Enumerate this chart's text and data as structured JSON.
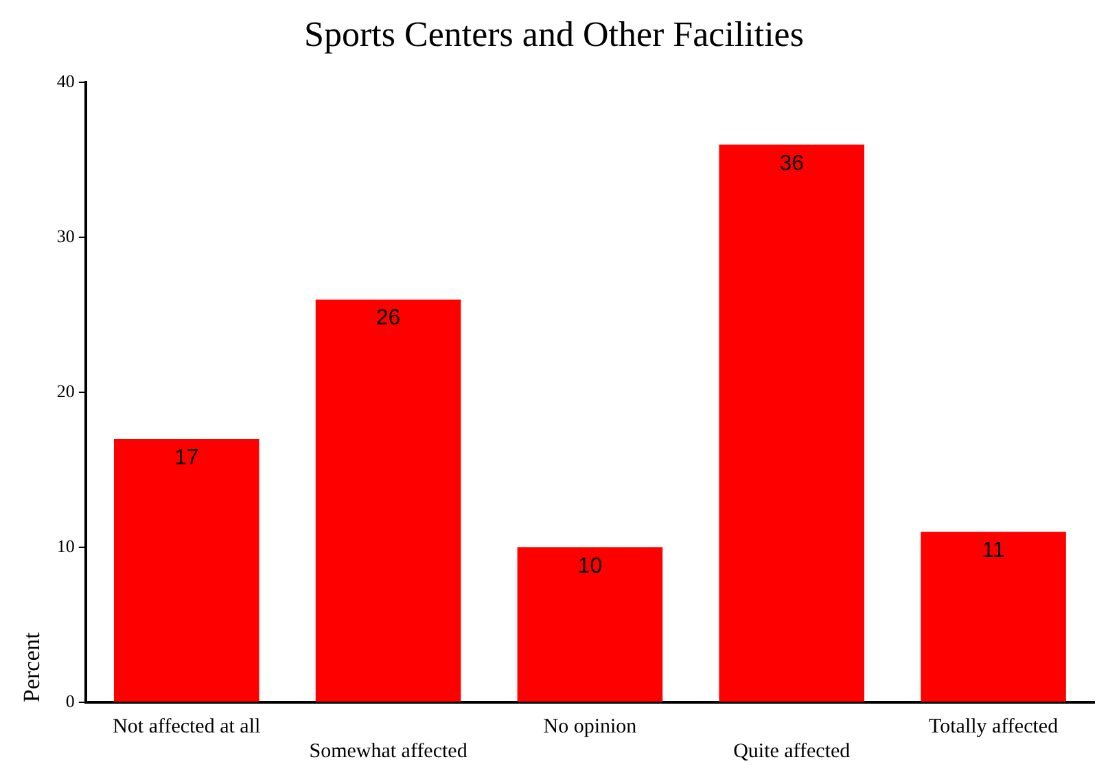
{
  "chart_data": {
    "type": "bar",
    "title": "Sports Centers and Other Facilities",
    "ylabel": "Percent",
    "categories": [
      "Not affected at all",
      "Somewhat affected",
      "No opinion",
      "Quite affected",
      "Totally affected"
    ],
    "values": [
      17,
      26,
      10,
      36,
      11
    ],
    "color": "#ff0000",
    "ylim": [
      0,
      40
    ],
    "yticks": [
      0,
      10,
      20,
      30,
      40
    ],
    "grid": false,
    "legend": false,
    "data_labels": true
  }
}
